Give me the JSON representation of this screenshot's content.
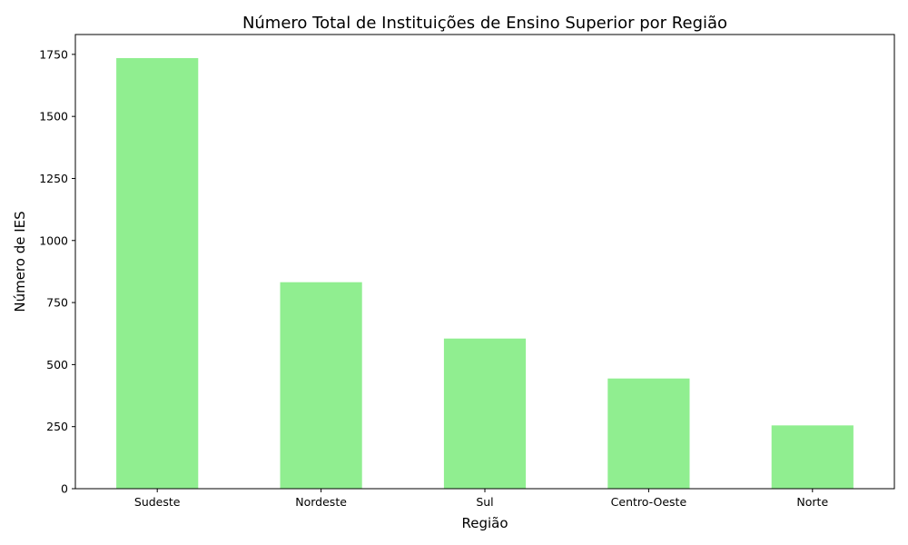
{
  "chart_data": {
    "type": "bar",
    "title": "Número Total de Instituições de Ensino Superior por Região",
    "xlabel": "Região",
    "ylabel": "Número de IES",
    "categories": [
      "Sudeste",
      "Nordeste",
      "Sul",
      "Centro-Oeste",
      "Norte"
    ],
    "values": [
      1735,
      832,
      605,
      444,
      255
    ],
    "ylim": [
      0,
      1830
    ],
    "yticks": [
      0,
      250,
      500,
      750,
      1000,
      1250,
      1500,
      1750
    ],
    "ytick_labels": [
      "0",
      "250",
      "500",
      "750",
      "1000",
      "1250",
      "1500",
      "1750"
    ],
    "grid": false,
    "bar_color": "#90ee90"
  }
}
